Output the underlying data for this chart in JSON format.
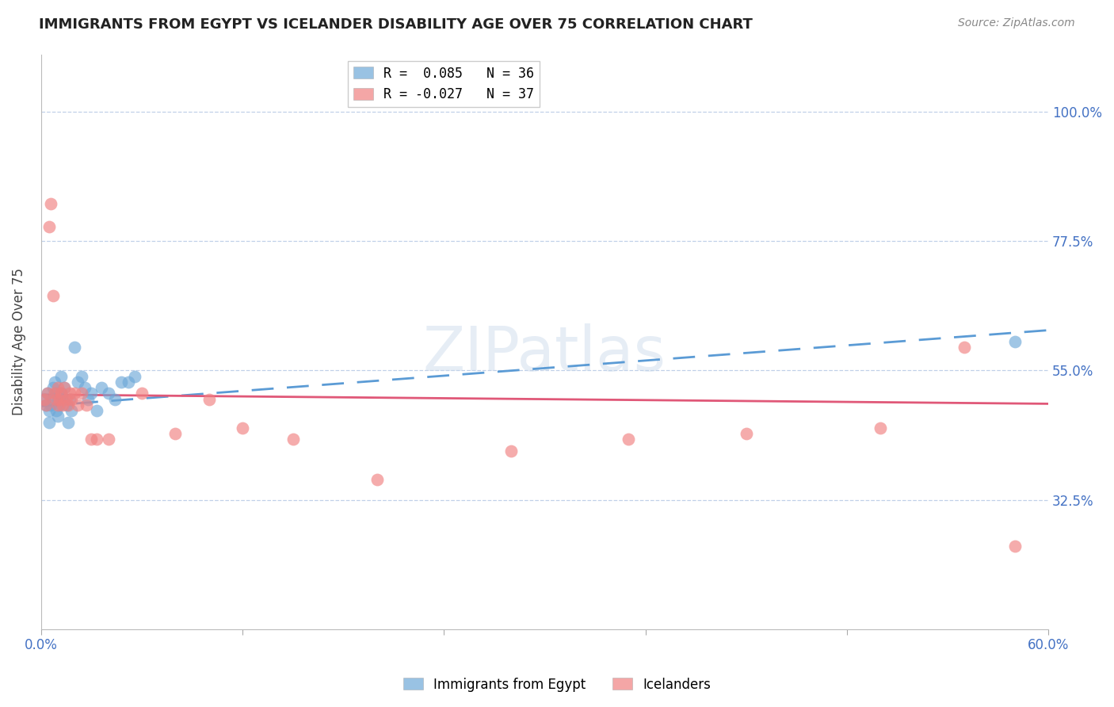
{
  "title": "IMMIGRANTS FROM EGYPT VS ICELANDER DISABILITY AGE OVER 75 CORRELATION CHART",
  "source": "Source: ZipAtlas.com",
  "ylabel_label": "Disability Age Over 75",
  "xlim": [
    0.0,
    0.6
  ],
  "ylim": [
    0.1,
    1.1
  ],
  "yticks": [
    0.325,
    0.55,
    0.775,
    1.0
  ],
  "ytick_labels": [
    "32.5%",
    "55.0%",
    "77.5%",
    "100.0%"
  ],
  "xticks": [
    0.0,
    0.12,
    0.24,
    0.36,
    0.48,
    0.6
  ],
  "xtick_labels": [
    "0.0%",
    "",
    "",
    "",
    "",
    "60.0%"
  ],
  "legend_r1": "R =  0.085   N = 36",
  "legend_r2": "R = -0.027   N = 37",
  "color_blue": "#6ea8d8",
  "color_pink": "#f08080",
  "watermark": "ZIPatlas",
  "egypt_x": [
    0.002,
    0.003,
    0.004,
    0.005,
    0.005,
    0.006,
    0.007,
    0.007,
    0.008,
    0.009,
    0.009,
    0.01,
    0.01,
    0.011,
    0.012,
    0.012,
    0.013,
    0.014,
    0.015,
    0.016,
    0.017,
    0.018,
    0.02,
    0.022,
    0.024,
    0.026,
    0.028,
    0.03,
    0.033,
    0.036,
    0.04,
    0.044,
    0.048,
    0.052,
    0.056,
    0.58
  ],
  "egypt_y": [
    0.5,
    0.49,
    0.51,
    0.48,
    0.46,
    0.49,
    0.52,
    0.5,
    0.53,
    0.48,
    0.51,
    0.5,
    0.47,
    0.49,
    0.51,
    0.54,
    0.5,
    0.52,
    0.49,
    0.46,
    0.5,
    0.48,
    0.59,
    0.53,
    0.54,
    0.52,
    0.5,
    0.51,
    0.48,
    0.52,
    0.51,
    0.5,
    0.53,
    0.53,
    0.54,
    0.6
  ],
  "iceland_x": [
    0.002,
    0.003,
    0.004,
    0.005,
    0.006,
    0.007,
    0.008,
    0.009,
    0.01,
    0.01,
    0.011,
    0.012,
    0.013,
    0.014,
    0.015,
    0.016,
    0.017,
    0.018,
    0.02,
    0.022,
    0.024,
    0.027,
    0.03,
    0.033,
    0.04,
    0.06,
    0.08,
    0.1,
    0.12,
    0.15,
    0.2,
    0.28,
    0.35,
    0.42,
    0.5,
    0.55,
    0.58
  ],
  "iceland_y": [
    0.5,
    0.49,
    0.51,
    0.8,
    0.84,
    0.68,
    0.51,
    0.5,
    0.49,
    0.52,
    0.5,
    0.51,
    0.49,
    0.52,
    0.5,
    0.49,
    0.51,
    0.5,
    0.51,
    0.49,
    0.51,
    0.49,
    0.43,
    0.43,
    0.43,
    0.51,
    0.44,
    0.5,
    0.45,
    0.43,
    0.36,
    0.41,
    0.43,
    0.44,
    0.45,
    0.59,
    0.245
  ],
  "egypt_trend_x": [
    0.0,
    0.6
  ],
  "egypt_trend_y": [
    0.488,
    0.62
  ],
  "iceland_trend_x": [
    0.0,
    0.6
  ],
  "iceland_trend_y": [
    0.508,
    0.492
  ]
}
